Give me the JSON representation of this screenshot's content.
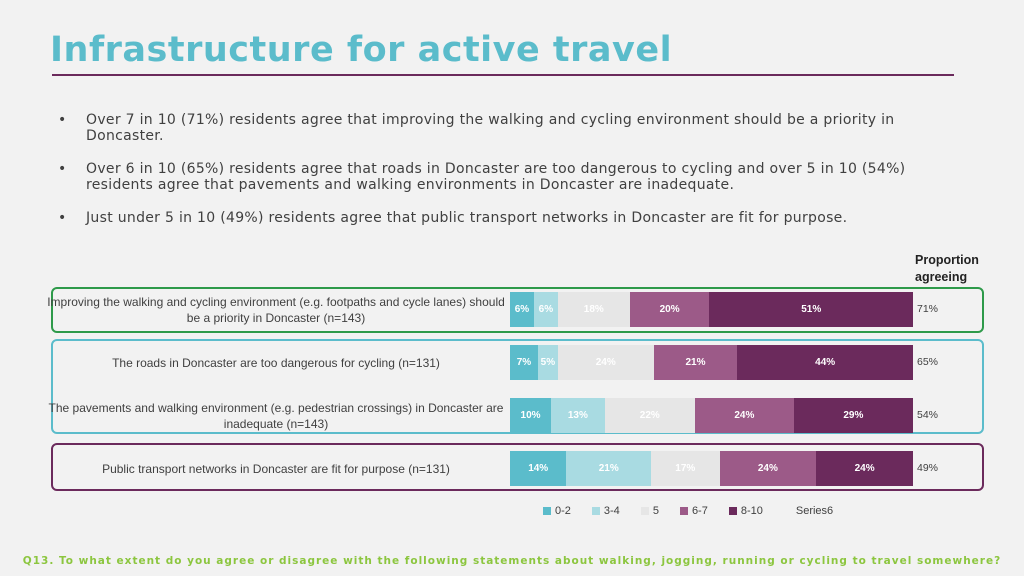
{
  "slide": {
    "title": "Infrastructure for active travel",
    "bullet_symbol": "•",
    "bullets": [
      "Over 7 in 10 (71%) residents agree that improving the walking and cycling environment should be a priority in Doncaster.",
      "Over 6 in 10 (65%) residents agree that roads in Doncaster are too dangerous to cycling and over 5 in 10 (54%) residents agree that pavements and walking environments in Doncaster are inadequate.",
      "Just under 5 in 10 (49%) residents agree that public transport networks in Doncaster are fit for purpose."
    ],
    "footer": "Q13. To what extent do you agree or disagree with the following statements about walking, jogging, running or cycling to travel somewhere?"
  },
  "chart_data": {
    "type": "bar",
    "orientation": "horizontal-stacked-100",
    "proportion_header": "Proportion agreeing",
    "categories": [
      "Improving the walking and cycling environment (e.g. footpaths and cycle lanes) should be a priority in Doncaster (n=143)",
      "The roads in Doncaster are too dangerous for cycling (n=131)",
      "The pavements and walking environment (e.g. pedestrian crossings) in Doncaster are inadequate (n=143)",
      "Public transport networks in Doncaster are fit for purpose (n=131)"
    ],
    "series": [
      {
        "name": "0-2",
        "color": "#5bbccb",
        "values": [
          6,
          7,
          10,
          14
        ]
      },
      {
        "name": "3-4",
        "color": "#a9dbe2",
        "values": [
          6,
          5,
          13,
          21
        ]
      },
      {
        "name": "5",
        "color": "#e6e6e6",
        "values": [
          18,
          24,
          22,
          17
        ]
      },
      {
        "name": "6-7",
        "color": "#9c5a88",
        "values": [
          20,
          21,
          24,
          24
        ]
      },
      {
        "name": "8-10",
        "color": "#6b2a5c",
        "values": [
          51,
          44,
          29,
          24
        ]
      },
      {
        "name": "Series6",
        "color": "#f2f2f2",
        "values": [
          null,
          null,
          null,
          null
        ]
      }
    ],
    "proportion_agreeing": [
      "71%",
      "65%",
      "54%",
      "49%"
    ],
    "legend_position": "bottom"
  }
}
